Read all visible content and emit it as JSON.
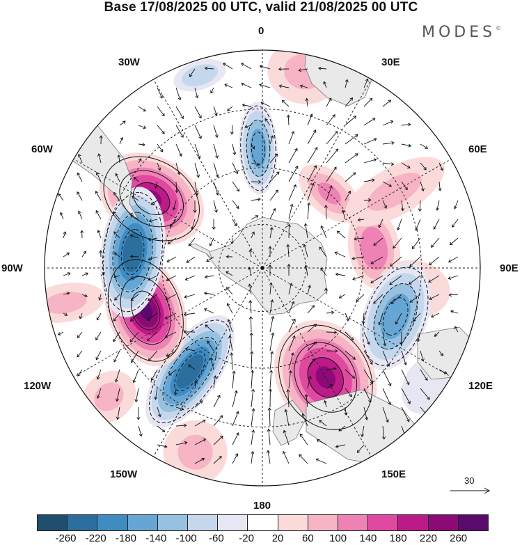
{
  "header": {
    "title": "Base 17/08/2025 00 UTC, valid 21/08/2025 00 UTC",
    "brand": "MODES",
    "brand_mark": "©"
  },
  "map": {
    "projection": "south-polar-stereographic",
    "longitude_labels": {
      "top": "0",
      "top_right": "30E",
      "upper_right": "60E",
      "right": "90E",
      "lower_right": "120E",
      "bottom_right": "150E",
      "bottom": "180",
      "bottom_left": "150W",
      "lower_left": "120W",
      "left": "90W",
      "upper_left": "60W",
      "top_left": "30W"
    },
    "land_color": "#e9e9e9",
    "ocean_color": "#ffffff"
  },
  "vector_reference": {
    "value": "30"
  },
  "colorbar": {
    "colors": [
      "#1f4e6e",
      "#2c6f9e",
      "#3f8cc3",
      "#66a6d4",
      "#97c1e0",
      "#c5d7ec",
      "#e6e7f3",
      "#ffffff",
      "#fbdada",
      "#f6b4c4",
      "#ee82b5",
      "#df4aa0",
      "#bd1a89",
      "#8c0a76",
      "#5a0a6a"
    ],
    "labels": [
      "-260",
      "-220",
      "-180",
      "-140",
      "-100",
      "-60",
      "-20",
      "20",
      "60",
      "100",
      "140",
      "180",
      "220",
      "260"
    ]
  },
  "anomalies": [
    {
      "lon": -58,
      "r": 0.6,
      "sx": 52,
      "sy": 70,
      "v": 220
    },
    {
      "lon": -2,
      "r": 0.55,
      "sx": 24,
      "sy": 58,
      "v": -160
    },
    {
      "lon": 20,
      "r": 0.92,
      "sx": 40,
      "sy": 22,
      "v": -100
    },
    {
      "lon": -18,
      "r": 0.93,
      "sx": 34,
      "sy": 18,
      "v": -100
    },
    {
      "lon": 42,
      "r": 0.46,
      "sx": 46,
      "sy": 26,
      "v": 100
    },
    {
      "lon": 12,
      "r": 0.92,
      "sx": 46,
      "sy": 40,
      "v": 60
    },
    {
      "lon": 80,
      "r": 0.52,
      "sx": 52,
      "sy": 32,
      "v": 120
    },
    {
      "lon": 60,
      "r": 0.7,
      "sx": 30,
      "sy": 70,
      "v": 60
    },
    {
      "lon": 98,
      "r": 0.7,
      "sx": 36,
      "sy": 46,
      "v": 40
    },
    {
      "lon": 110,
      "r": 0.65,
      "sx": 70,
      "sy": 40,
      "v": -180
    },
    {
      "lon": 150,
      "r": 0.58,
      "sx": 60,
      "sy": 75,
      "v": 230
    },
    {
      "lon": 125,
      "r": 0.93,
      "sx": 40,
      "sy": 30,
      "v": -60
    },
    {
      "lon": -145,
      "r": 0.58,
      "sx": 36,
      "sy": 82,
      "v": -240
    },
    {
      "lon": -110,
      "r": 0.57,
      "sx": 72,
      "sy": 48,
      "v": 260
    },
    {
      "lon": -83,
      "r": 0.6,
      "sx": 82,
      "sy": 40,
      "v": -240
    },
    {
      "lon": -130,
      "r": 0.92,
      "sx": 30,
      "sy": 36,
      "v": 60
    },
    {
      "lon": -100,
      "r": 0.92,
      "sx": 24,
      "sy": 50,
      "v": 60
    },
    {
      "lon": -160,
      "r": 0.9,
      "sx": 40,
      "sy": 40,
      "v": 60
    }
  ]
}
